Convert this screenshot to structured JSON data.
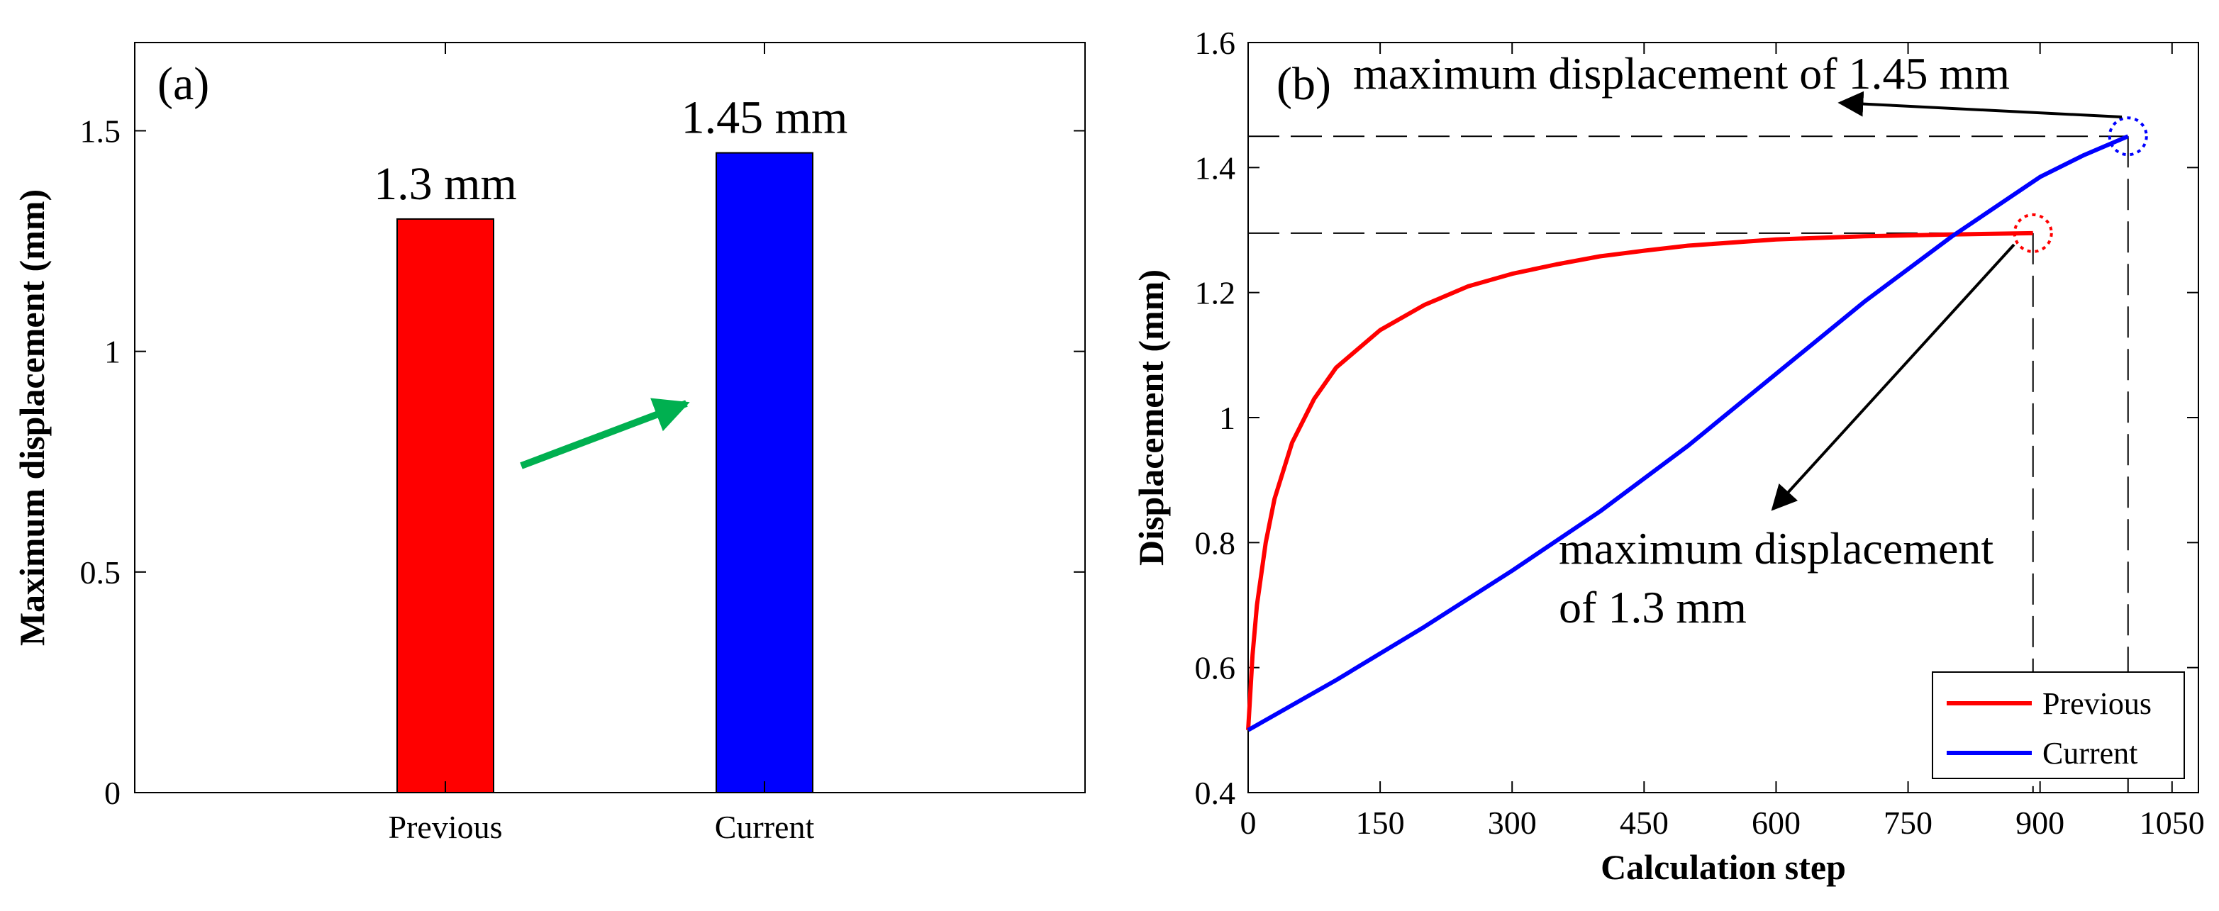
{
  "colors": {
    "previous": "#ff0000",
    "current": "#0000ff",
    "arrow_green": "#00b050",
    "axis": "#000000",
    "guide": "#000000"
  },
  "chart_data": [
    {
      "type": "bar",
      "panel_label": "(a)",
      "title": "",
      "categories": [
        "Previous",
        "Current"
      ],
      "values": [
        1.3,
        1.45
      ],
      "data_labels": [
        "1.3 mm",
        "1.45 mm"
      ],
      "xlabel": "",
      "ylabel": "Maximum displacement (mm)",
      "ylim": [
        0,
        1.7
      ],
      "yticks": [
        0,
        0.5,
        1,
        1.5
      ],
      "ytick_labels": [
        "0",
        "0.5",
        "1",
        "1.5"
      ],
      "grid": false,
      "annotation": "green arrow pointing from Previous to Current"
    },
    {
      "type": "line",
      "panel_label": "(b)",
      "title": "",
      "xlabel": "Calculation step",
      "ylabel": "Displacement (mm)",
      "xlim": [
        0,
        1080
      ],
      "ylim": [
        0.4,
        1.6
      ],
      "xticks": [
        0,
        150,
        300,
        450,
        600,
        750,
        900,
        1050
      ],
      "xtick_labels": [
        "0",
        "150",
        "300",
        "450",
        "600",
        "750",
        "900",
        "1050"
      ],
      "yticks": [
        0.4,
        0.6,
        0.8,
        1,
        1.2,
        1.4,
        1.6
      ],
      "ytick_labels": [
        "0.4",
        "0.6",
        "0.8",
        "1",
        "1.2",
        "1.4",
        "1.6"
      ],
      "grid": false,
      "legend": "bottom-right",
      "series": [
        {
          "name": "Previous",
          "x": [
            0,
            5,
            10,
            20,
            30,
            50,
            75,
            100,
            150,
            200,
            250,
            300,
            350,
            400,
            450,
            500,
            600,
            700,
            800,
            892
          ],
          "y": [
            0.5,
            0.62,
            0.7,
            0.8,
            0.87,
            0.96,
            1.03,
            1.08,
            1.14,
            1.18,
            1.21,
            1.23,
            1.245,
            1.258,
            1.267,
            1.275,
            1.285,
            1.29,
            1.293,
            1.295
          ]
        },
        {
          "name": "Current",
          "x": [
            0,
            100,
            200,
            300,
            400,
            500,
            600,
            700,
            800,
            900,
            950,
            1000
          ],
          "y": [
            0.5,
            0.58,
            0.665,
            0.755,
            0.85,
            0.955,
            1.07,
            1.185,
            1.29,
            1.385,
            1.42,
            1.45
          ]
        }
      ],
      "annotations": {
        "max_current": "maximum  displacement of 1.45 mm",
        "max_previous_line1": "maximum  displacement",
        "max_previous_line2": "of 1.3 mm",
        "max_current_point": [
          1000,
          1.45
        ],
        "max_previous_point": [
          892,
          1.295
        ]
      }
    }
  ]
}
